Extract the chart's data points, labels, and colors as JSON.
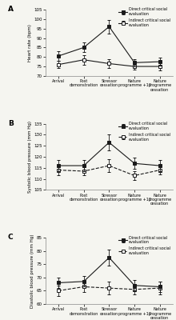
{
  "x_labels": [
    "Arrival",
    "Post\ndemonstration",
    "Stressor\ncessation",
    "Nature\nprogramme +10",
    "Nature\nprogramme\ncessation"
  ],
  "panel_A": {
    "label": "A",
    "ylabel": "Heart rate (bpm)",
    "ylim": [
      70,
      105
    ],
    "yticks": [
      70,
      75,
      80,
      85,
      90,
      95,
      100,
      105
    ],
    "direct": [
      80.5,
      85.0,
      96.0,
      77.0,
      77.5
    ],
    "indirect": [
      76.0,
      78.5,
      76.5,
      75.0,
      75.0
    ],
    "direct_err": [
      2.5,
      2.5,
      3.5,
      2.0,
      2.0
    ],
    "indirect_err": [
      2.0,
      2.5,
      2.5,
      1.5,
      2.0
    ],
    "indirect_dashed": false
  },
  "panel_B": {
    "label": "B",
    "ylabel": "Systolic blood pressure (mm Hg)",
    "ylim": [
      105,
      135
    ],
    "yticks": [
      105,
      110,
      115,
      120,
      125,
      130,
      135
    ],
    "direct": [
      116.0,
      116.0,
      126.5,
      117.0,
      116.0
    ],
    "indirect": [
      114.0,
      113.5,
      116.0,
      111.5,
      114.0
    ],
    "direct_err": [
      2.5,
      2.5,
      3.5,
      2.5,
      2.5
    ],
    "indirect_err": [
      2.5,
      2.0,
      3.0,
      2.0,
      2.0
    ],
    "indirect_dashed": true
  },
  "panel_C": {
    "label": "C",
    "ylabel": "Diastolic blood pressure (mm Hg)",
    "ylim": [
      60,
      85
    ],
    "yticks": [
      60,
      65,
      70,
      75,
      80,
      85
    ],
    "direct": [
      68.0,
      68.5,
      77.5,
      67.0,
      66.5
    ],
    "indirect": [
      65.0,
      66.5,
      66.0,
      65.5,
      66.0
    ],
    "direct_err": [
      2.0,
      2.0,
      3.0,
      2.0,
      2.0
    ],
    "indirect_err": [
      2.0,
      2.0,
      2.5,
      2.0,
      2.5
    ],
    "indirect_dashed": true
  },
  "legend_direct": "Direct critical social\nevaluation",
  "legend_indirect": "Indirect critical social\nevaluation",
  "line_color": "#1a1a1a",
  "bg_color": "#f5f5f0"
}
